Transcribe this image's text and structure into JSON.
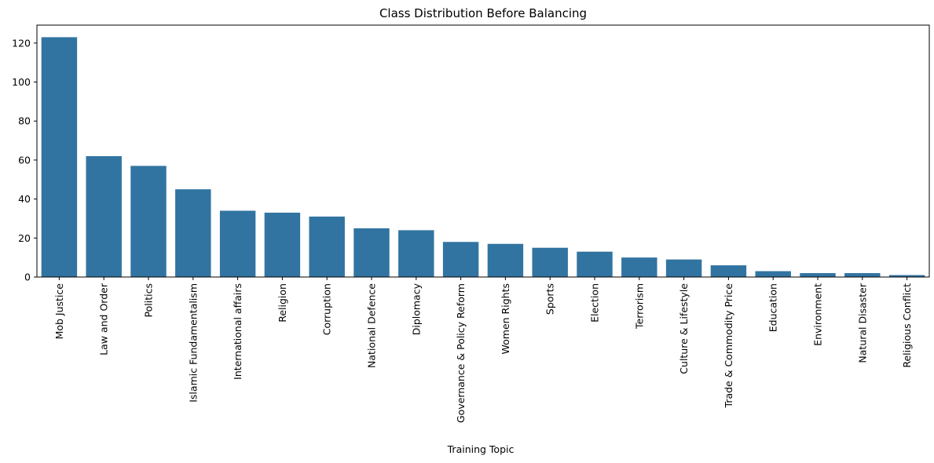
{
  "chart_data": {
    "type": "bar",
    "title": "Class Distribution Before Balancing",
    "xlabel": "Training Topic",
    "ylabel": "",
    "ylim": [
      0,
      129.2
    ],
    "yticks": [
      0,
      20,
      40,
      60,
      80,
      100,
      120
    ],
    "grid": false,
    "bar_color": "#3274a1",
    "categories": [
      "Mob Justice",
      "Law and Order",
      "Politics",
      "Islamic Fundamentalism",
      "International affairs",
      "Religion",
      "Corruption",
      "National Defence",
      "Diplomacy",
      "Governance & Policy Reform",
      "Women Rights",
      "Sports",
      "Election",
      "Terrorism",
      "Culture & Lifestyle",
      "Trade & Commodity Price",
      "Education",
      "Environment",
      "Natural Disaster",
      "Religious Conflict"
    ],
    "values": [
      123,
      62,
      57,
      45,
      34,
      33,
      31,
      25,
      24,
      18,
      17,
      15,
      13,
      10,
      9,
      6,
      3,
      2,
      2,
      1
    ]
  }
}
